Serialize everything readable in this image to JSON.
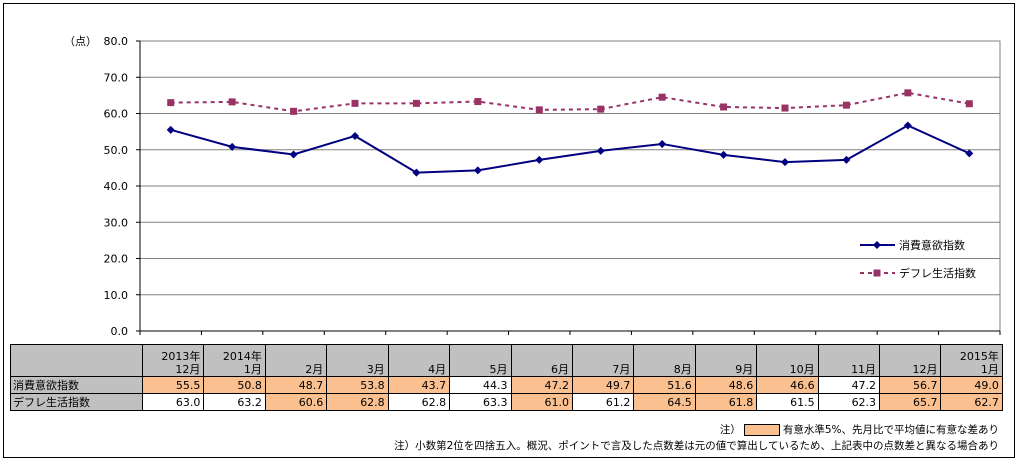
{
  "chart_data": {
    "type": "line",
    "unit_label": "（点）",
    "ylim": [
      0,
      80
    ],
    "yticks": [
      "0.0",
      "10.0",
      "20.0",
      "30.0",
      "40.0",
      "50.0",
      "60.0",
      "70.0",
      "80.0"
    ],
    "grid": true,
    "legend_position": "right",
    "categories": [
      {
        "line1": "2013年",
        "line2": "12月"
      },
      {
        "line1": "2014年",
        "line2": "1月"
      },
      {
        "line1": "",
        "line2": "2月"
      },
      {
        "line1": "",
        "line2": "3月"
      },
      {
        "line1": "",
        "line2": "4月"
      },
      {
        "line1": "",
        "line2": "5月"
      },
      {
        "line1": "",
        "line2": "6月"
      },
      {
        "line1": "",
        "line2": "7月"
      },
      {
        "line1": "",
        "line2": "8月"
      },
      {
        "line1": "",
        "line2": "9月"
      },
      {
        "line1": "",
        "line2": "10月"
      },
      {
        "line1": "",
        "line2": "11月"
      },
      {
        "line1": "",
        "line2": "12月"
      },
      {
        "line1": "2015年",
        "line2": "1月"
      }
    ],
    "series": [
      {
        "name": "消費意欲指数",
        "color": "#000080",
        "marker": "diamond",
        "style": "solid",
        "values": [
          55.5,
          50.8,
          48.7,
          53.8,
          43.7,
          44.3,
          47.2,
          49.7,
          51.6,
          48.6,
          46.6,
          47.2,
          56.7,
          49.0
        ],
        "labels": [
          "55.5",
          "50.8",
          "48.7",
          "53.8",
          "43.7",
          "44.3",
          "47.2",
          "49.7",
          "51.6",
          "48.6",
          "46.6",
          "47.2",
          "56.7",
          "49.0"
        ],
        "significant": [
          true,
          true,
          true,
          true,
          true,
          false,
          true,
          true,
          true,
          true,
          true,
          false,
          true,
          true
        ]
      },
      {
        "name": "デフレ生活指数",
        "color": "#993366",
        "marker": "square",
        "style": "dashed",
        "values": [
          63.0,
          63.2,
          60.6,
          62.8,
          62.8,
          63.3,
          61.0,
          61.2,
          64.5,
          61.8,
          61.5,
          62.3,
          65.7,
          62.7
        ],
        "labels": [
          "63.0",
          "63.2",
          "60.6",
          "62.8",
          "62.8",
          "63.3",
          "61.0",
          "61.2",
          "64.5",
          "61.8",
          "61.5",
          "62.3",
          "65.7",
          "62.7"
        ],
        "significant": [
          false,
          false,
          true,
          true,
          false,
          false,
          true,
          false,
          true,
          true,
          false,
          false,
          true,
          true
        ]
      }
    ]
  },
  "notes": {
    "note1_prefix": "注）",
    "note1_text": "有意水準5%、先月比で平均値に有意な差あり",
    "note2": "注）小数第2位を四捨五入。概況、ポイントで言及した点数差は元の値で算出しているため、上記表中の点数差と異なる場合あり"
  },
  "colors": {
    "significant_fill": "#fac090",
    "header_fill": "#c0c0c0",
    "grid": "#808080"
  }
}
